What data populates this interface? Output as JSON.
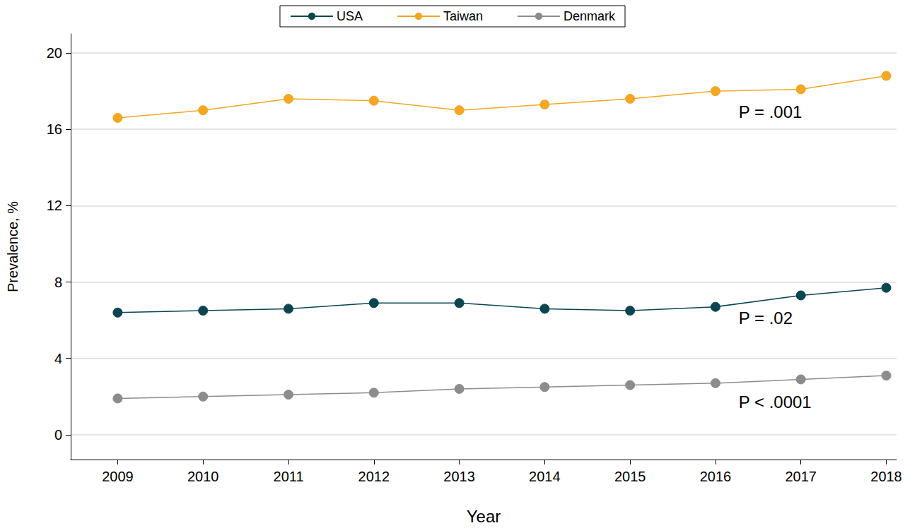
{
  "chart_data": {
    "type": "line",
    "x_label": "Year",
    "y_label": "Prevalence, %",
    "x": [
      2009,
      2010,
      2011,
      2012,
      2013,
      2014,
      2015,
      2016,
      2017,
      2018
    ],
    "series": [
      {
        "name": "USA",
        "color": "#0b4650",
        "marker": "circle",
        "values": [
          6.4,
          6.5,
          6.6,
          6.9,
          6.9,
          6.6,
          6.5,
          6.7,
          7.3,
          7.7
        ]
      },
      {
        "name": "Taiwan",
        "color": "#f5a623",
        "marker": "circle",
        "values": [
          16.6,
          17.0,
          17.6,
          17.5,
          17.0,
          17.3,
          17.6,
          18.0,
          18.1,
          18.8
        ]
      },
      {
        "name": "Denmark",
        "color": "#8c8c8c",
        "marker": "circle",
        "values": [
          1.9,
          2.0,
          2.1,
          2.2,
          2.4,
          2.5,
          2.6,
          2.7,
          2.9,
          3.1
        ]
      }
    ],
    "annotations": [
      {
        "text": "P = .001",
        "series": "Taiwan"
      },
      {
        "text": "P = .02",
        "series": "USA"
      },
      {
        "text": "P < .0001",
        "series": "Denmark"
      }
    ],
    "xlim": [
      2008.45,
      2018.12
    ],
    "xticks": [
      2009,
      2010,
      2011,
      2012,
      2013,
      2014,
      2015,
      2016,
      2017,
      2018
    ],
    "ylim": [
      -1.3,
      21
    ],
    "yticks": [
      0,
      4,
      8,
      12,
      16,
      20
    ],
    "grid": true,
    "legend": "top"
  }
}
